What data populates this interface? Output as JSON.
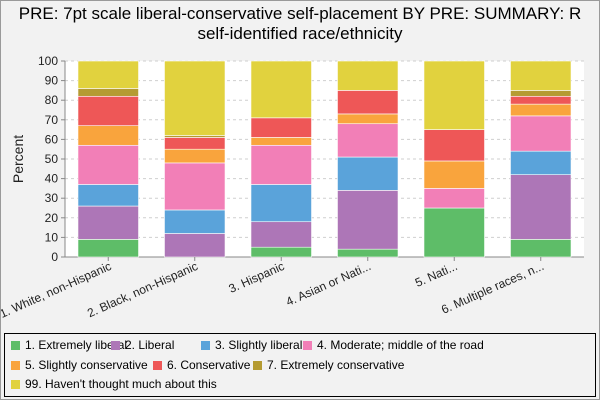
{
  "title": "PRE: 7pt scale liberal-conservative self-placement BY PRE: SUMMARY: R self-identified race/ethnicity",
  "chart_data": {
    "type": "bar",
    "stacked": true,
    "title": "PRE: 7pt scale liberal-conservative self-placement BY PRE: SUMMARY: R self-identified race/ethnicity",
    "ylabel": "Percent",
    "xlabel": "",
    "ylim": [
      0,
      100
    ],
    "yticks": [
      0,
      10,
      20,
      30,
      40,
      50,
      60,
      70,
      80,
      90,
      100
    ],
    "grid": true,
    "legend_position": "bottom",
    "categories": [
      "1. White, non-Hispanic",
      "2. Black, non-Hispanic",
      "3. Hispanic",
      "4. Asian or Nati...",
      "5. Nati...",
      "6. Multiple races, n..."
    ],
    "series": [
      {
        "name": "1. Extremely liberal",
        "color": "#5ebd68",
        "values": [
          9,
          0,
          5,
          4,
          25,
          9
        ]
      },
      {
        "name": "2. Liberal",
        "color": "#ad76b7",
        "values": [
          17,
          12,
          13,
          30,
          0,
          33
        ]
      },
      {
        "name": "3. Slightly liberal",
        "color": "#5aa3da",
        "values": [
          11,
          12,
          19,
          17,
          0,
          12
        ]
      },
      {
        "name": "4. Moderate; middle of the road",
        "color": "#f27fb7",
        "values": [
          20,
          24,
          20,
          17,
          10,
          18
        ]
      },
      {
        "name": "5. Slightly conservative",
        "color": "#f9a43d",
        "values": [
          10,
          7,
          4,
          5,
          14,
          6
        ]
      },
      {
        "name": "6. Conservative",
        "color": "#ee5757",
        "values": [
          15,
          6,
          10,
          12,
          16,
          4
        ]
      },
      {
        "name": "7. Extremely conservative",
        "color": "#b59b32",
        "values": [
          4,
          1,
          0,
          0,
          0,
          3
        ]
      },
      {
        "name": "99. Haven't thought much about this",
        "color": "#e1d23e",
        "values": [
          14,
          38,
          29,
          15,
          35,
          15
        ]
      }
    ]
  }
}
